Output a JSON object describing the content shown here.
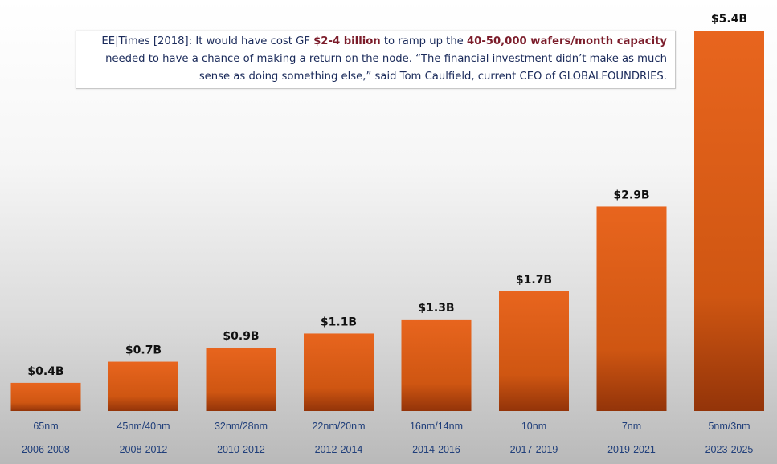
{
  "note": {
    "part1": "EE|Times [2018]: It would have cost GF ",
    "highlight1": "$2-4 billion",
    "part2": " to ramp up the ",
    "highlight2": "40-50,000 wafers/month capacity",
    "part3": " needed to have a chance of making a return on the node. “The financial investment didn’t make as much sense as doing something else,” said Tom Caulfield, current CEO of GLOBALFOUNDRIES."
  },
  "colors": {
    "bar_top": "#e8651e",
    "bar_bottom": "#933409",
    "highlight": "#7b1c2a",
    "category_text": "#1f3e7a"
  },
  "chart_data": {
    "type": "bar",
    "categories": [
      "65nm",
      "45nm/40nm",
      "32nm/28nm",
      "22nm/20nm",
      "16nm/14nm",
      "10nm",
      "7nm",
      "5nm/3nm"
    ],
    "periods": [
      "2006-2008",
      "2008-2012",
      "2010-2012",
      "2012-2014",
      "2014-2016",
      "2017-2019",
      "2019-2021",
      "2023-2025"
    ],
    "values": [
      0.4,
      0.7,
      0.9,
      1.1,
      1.3,
      1.7,
      2.9,
      5.4
    ],
    "value_labels": [
      "$0.4B",
      "$0.7B",
      "$0.9B",
      "$1.1B",
      "$1.3B",
      "$1.7B",
      "$2.9B",
      "$5.4B"
    ],
    "ylim": [
      0,
      5.4
    ],
    "grid": false
  }
}
